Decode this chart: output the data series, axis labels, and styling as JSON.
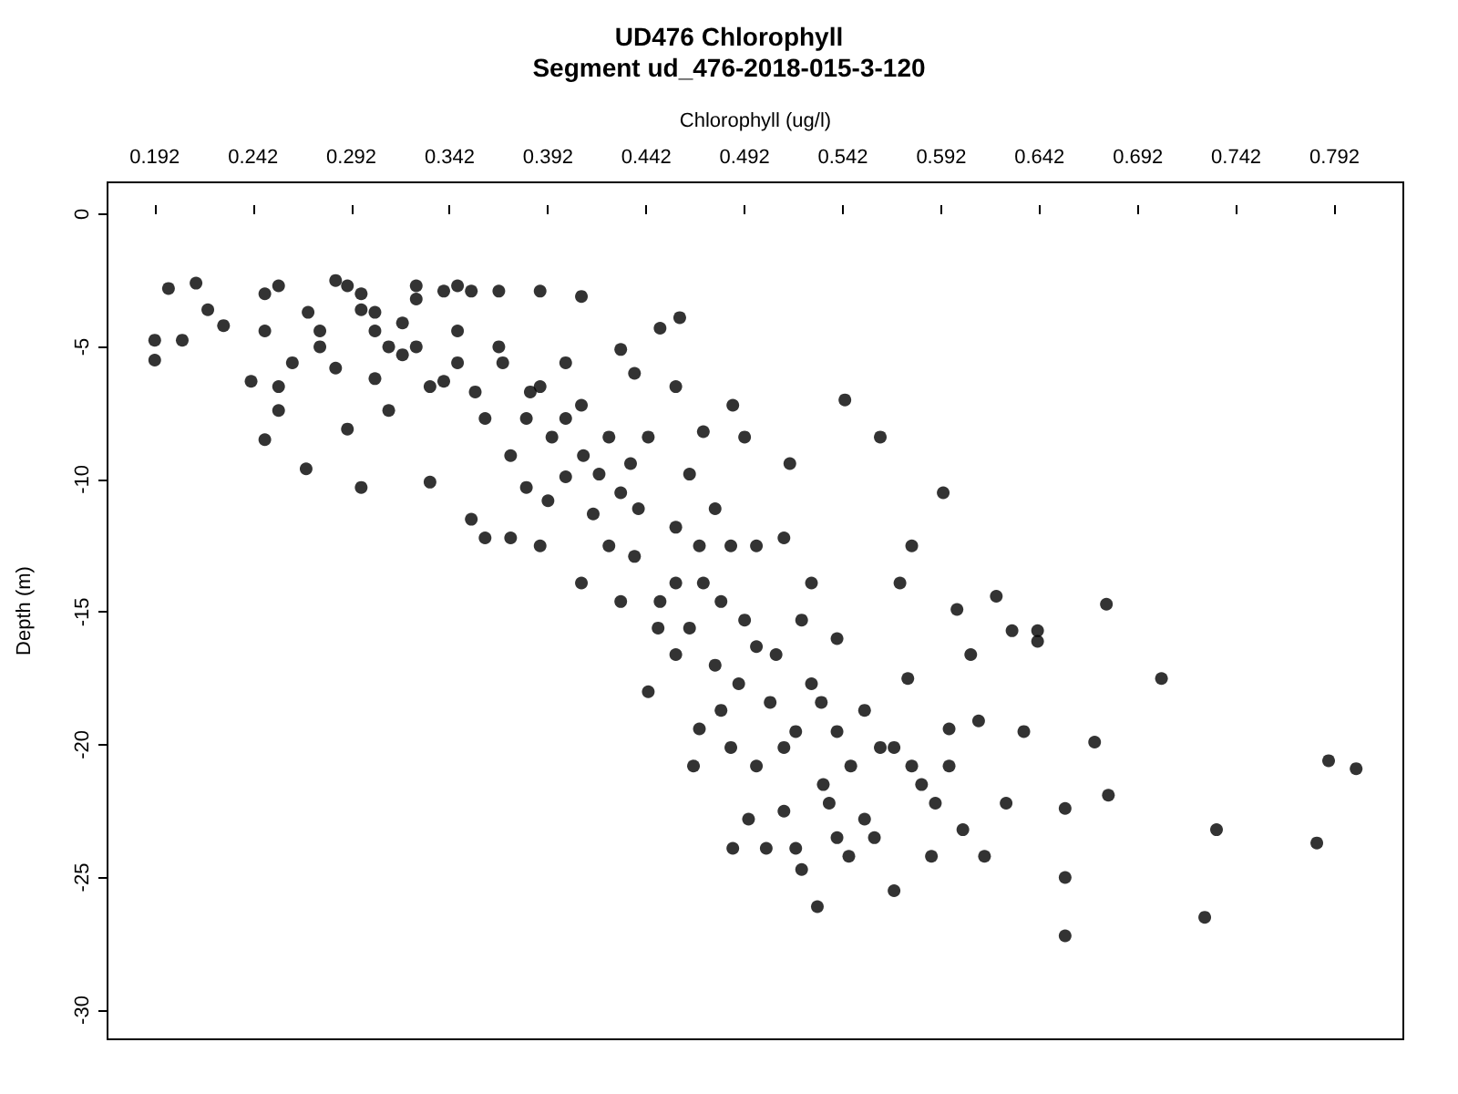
{
  "chart_data": {
    "type": "scatter",
    "title": "UD476 Chlorophyll",
    "subtitle": "Segment ud_476-2018-015-3-120",
    "xlabel": "Chlorophyll (ug/l)",
    "ylabel": "Depth (m)",
    "xlim": [
      0.168,
      0.827
    ],
    "xticks": [
      0.192,
      0.242,
      0.292,
      0.342,
      0.392,
      0.442,
      0.492,
      0.542,
      0.592,
      0.642,
      0.692,
      0.742,
      0.792
    ],
    "ylim": [
      -31.1,
      1.2
    ],
    "yticks": [
      0,
      -5,
      -10,
      -15,
      -20,
      -25,
      -30
    ],
    "grid": false,
    "marker": "circle",
    "series": [
      {
        "color": "#000000",
        "x": [
          0.192,
          0.192,
          0.199,
          0.206,
          0.213,
          0.219,
          0.227,
          0.241,
          0.248,
          0.248,
          0.248,
          0.255,
          0.255,
          0.255,
          0.262,
          0.269,
          0.27,
          0.276,
          0.276,
          0.284,
          0.284,
          0.29,
          0.29,
          0.297,
          0.297,
          0.297,
          0.304,
          0.304,
          0.304,
          0.311,
          0.311,
          0.318,
          0.318,
          0.325,
          0.325,
          0.325,
          0.332,
          0.332,
          0.339,
          0.339,
          0.346,
          0.346,
          0.346,
          0.353,
          0.353,
          0.36,
          0.36,
          0.367,
          0.367,
          0.373,
          0.373,
          0.381,
          0.381,
          0.388,
          0.388,
          0.388,
          0.394,
          0.401,
          0.401,
          0.409,
          0.409,
          0.409,
          0.415,
          0.423,
          0.423,
          0.429,
          0.429,
          0.436,
          0.436,
          0.443,
          0.443,
          0.449,
          0.449,
          0.457,
          0.457,
          0.459,
          0.464,
          0.464,
          0.471,
          0.471,
          0.477,
          0.477,
          0.485,
          0.485,
          0.486,
          0.492,
          0.492,
          0.498,
          0.498,
          0.505,
          0.512,
          0.512,
          0.515,
          0.518,
          0.518,
          0.521,
          0.526,
          0.526,
          0.529,
          0.532,
          0.539,
          0.539,
          0.539,
          0.543,
          0.546,
          0.553,
          0.553,
          0.561,
          0.561,
          0.568,
          0.571,
          0.575,
          0.577,
          0.582,
          0.587,
          0.589,
          0.593,
          0.596,
          0.6,
          0.603,
          0.607,
          0.611,
          0.614,
          0.62,
          0.625,
          0.628,
          0.634,
          0.641,
          0.641,
          0.655,
          0.655,
          0.655,
          0.67,
          0.676,
          0.677,
          0.704,
          0.726,
          0.732,
          0.783,
          0.789,
          0.803,
          0.434,
          0.448,
          0.457,
          0.469,
          0.48,
          0.489,
          0.498,
          0.508,
          0.521,
          0.531,
          0.535,
          0.545,
          0.558,
          0.568,
          0.577,
          0.596,
          0.512,
          0.494,
          0.503,
          0.48,
          0.469,
          0.457,
          0.438,
          0.418,
          0.401,
          0.383,
          0.369,
          0.355,
          0.41,
          0.392,
          0.429,
          0.466,
          0.486
        ],
        "values": [
          -4.75,
          -5.5,
          -2.8,
          -4.75,
          -2.6,
          -3.6,
          -4.2,
          -6.3,
          -3.0,
          -4.4,
          -8.5,
          -6.5,
          -7.4,
          -2.7,
          -5.6,
          -9.6,
          -3.7,
          -4.4,
          -5.0,
          -2.5,
          -5.8,
          -2.7,
          -8.1,
          -3.0,
          -3.6,
          -10.3,
          -3.7,
          -4.4,
          -6.2,
          -5.0,
          -7.4,
          -4.1,
          -5.3,
          -2.7,
          -3.2,
          -5.0,
          -10.1,
          -6.5,
          -2.9,
          -6.3,
          -2.7,
          -4.4,
          -5.6,
          -11.5,
          -2.9,
          -12.2,
          -7.7,
          -5.0,
          -2.9,
          -9.1,
          -12.2,
          -7.7,
          -10.3,
          -2.9,
          -6.5,
          -12.5,
          -8.4,
          -5.6,
          -9.9,
          -3.1,
          -7.2,
          -13.9,
          -11.3,
          -8.4,
          -12.5,
          -5.1,
          -10.5,
          -6.0,
          -12.9,
          -8.4,
          -18.0,
          -14.6,
          -4.3,
          -6.5,
          -11.8,
          -3.9,
          -9.8,
          -15.6,
          -8.2,
          -13.9,
          -11.1,
          -17.0,
          -12.5,
          -20.1,
          -7.2,
          -8.4,
          -15.3,
          -16.3,
          -20.8,
          -18.4,
          -12.2,
          -22.5,
          -9.4,
          -19.5,
          -23.9,
          -24.7,
          -13.9,
          -17.7,
          -26.1,
          -21.5,
          -16.0,
          -19.5,
          -23.5,
          -7.0,
          -20.8,
          -18.7,
          -22.8,
          -8.4,
          -20.1,
          -25.5,
          -13.9,
          -17.5,
          -12.5,
          -21.5,
          -24.2,
          -22.2,
          -10.5,
          -19.4,
          -14.9,
          -23.2,
          -16.6,
          -19.1,
          -24.2,
          -14.4,
          -22.2,
          -15.7,
          -19.5,
          -15.7,
          -16.1,
          -22.4,
          -25.0,
          -27.2,
          -19.9,
          -14.7,
          -21.9,
          -17.5,
          -26.5,
          -23.2,
          -23.7,
          -20.6,
          -20.9,
          -9.4,
          -15.6,
          -16.6,
          -12.5,
          -14.6,
          -17.7,
          -12.5,
          -16.6,
          -15.3,
          -18.4,
          -22.2,
          -24.2,
          -23.5,
          -20.1,
          -20.8,
          -20.8,
          -20.1,
          -22.8,
          -23.9,
          -18.7,
          -19.4,
          -13.9,
          -11.1,
          -9.8,
          -7.7,
          -6.7,
          -5.6,
          -6.7,
          -9.1,
          -10.8,
          -14.6,
          -20.8,
          -23.9
        ]
      }
    ]
  }
}
